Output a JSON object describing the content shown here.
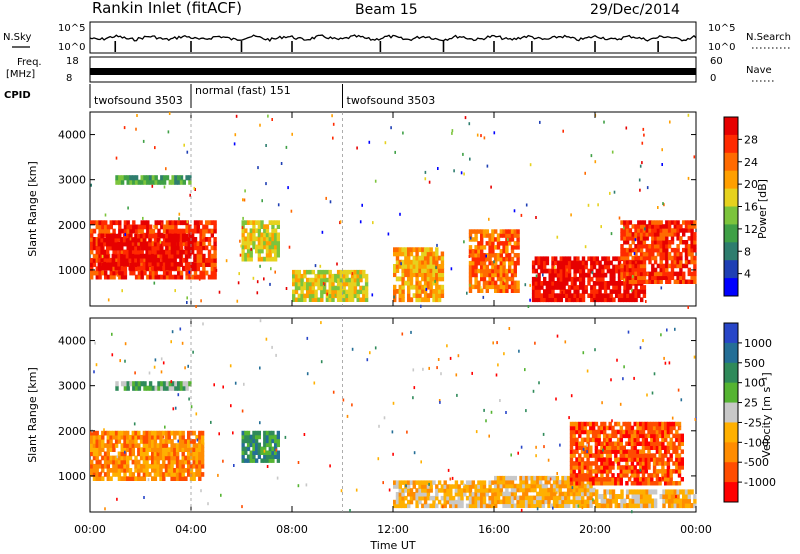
{
  "header": {
    "station": "Rankin Inlet (fitACF)",
    "beam": "Beam 15",
    "date": "29/Dec/2014"
  },
  "left_labels": {
    "nsky": "N.Sky",
    "freq_line1": "Freq.",
    "freq_line2": "[MHz]",
    "cpid": "CPID"
  },
  "right_labels": {
    "nsearch": "N.Search",
    "nave": "Nave"
  },
  "noise_axis": {
    "left_ticks": [
      "10^5",
      "10^0"
    ],
    "right_ticks": [
      "10^5",
      "10^0"
    ]
  },
  "freq_axis": {
    "left_ticks": [
      "18",
      "8"
    ],
    "right_ticks": [
      "60",
      "0"
    ]
  },
  "cpid_segments": [
    {
      "label": "twofsound 3503",
      "start_hr": 0.0,
      "end_hr": 4.0
    },
    {
      "label": "normal (fast) 151",
      "start_hr": 4.0,
      "end_hr": 10.0
    },
    {
      "label": "twofsound 3503",
      "start_hr": 10.0,
      "end_hr": 24.0
    }
  ],
  "colors": {
    "power": [
      "#0000ff",
      "#1f3fb4",
      "#2e7d6e",
      "#3fa046",
      "#7cc43c",
      "#e6d21e",
      "#ff9f00",
      "#ff6a00",
      "#ff2a00",
      "#e60000"
    ],
    "velocity": [
      "#ff0000",
      "#ff4c00",
      "#ff8c00",
      "#ffb000",
      "#c8c8c8",
      "#55b432",
      "#2f8a5a",
      "#246e96",
      "#2846c8"
    ]
  },
  "chart_data": [
    {
      "type": "heatmap",
      "title": "",
      "xlabel": "",
      "ylabel": "Slant Range [km]",
      "x_range_hours": [
        0,
        24
      ],
      "ylim": [
        200,
        4500
      ],
      "y_ticks": [
        "1000",
        "2000",
        "3000",
        "4000"
      ],
      "colorbar_label": "Power [dB]",
      "colorbar_ticks": [
        "28",
        "24",
        "20",
        "16",
        "12",
        "8",
        "4"
      ],
      "regions": [
        {
          "x0": 0.0,
          "x1": 5.0,
          "y0": 800,
          "y1": 2100,
          "level": 8
        },
        {
          "x0": 0.3,
          "x1": 4.2,
          "y0": 1000,
          "y1": 1800,
          "level": 9
        },
        {
          "x0": 1.0,
          "x1": 4.0,
          "y0": 2900,
          "y1": 3100,
          "level": 3
        },
        {
          "x0": 6.0,
          "x1": 7.5,
          "y0": 1200,
          "y1": 2100,
          "level": 5
        },
        {
          "x0": 12.0,
          "x1": 14.0,
          "y0": 300,
          "y1": 1500,
          "level": 6
        },
        {
          "x0": 15.0,
          "x1": 17.0,
          "y0": 500,
          "y1": 1900,
          "level": 7
        },
        {
          "x0": 17.5,
          "x1": 22.0,
          "y0": 300,
          "y1": 1300,
          "level": 9
        },
        {
          "x0": 21.0,
          "x1": 24.0,
          "y0": 700,
          "y1": 2100,
          "level": 8
        },
        {
          "x0": 8.0,
          "x1": 11.0,
          "y0": 300,
          "y1": 1000,
          "level": 5
        }
      ]
    },
    {
      "type": "heatmap",
      "title": "",
      "xlabel": "Time UT",
      "ylabel": "Slant Range [km]",
      "x_range_hours": [
        0,
        24
      ],
      "x_ticks": [
        "00:00",
        "04:00",
        "08:00",
        "12:00",
        "16:00",
        "20:00",
        "00:00"
      ],
      "ylim": [
        200,
        4500
      ],
      "y_ticks": [
        "1000",
        "2000",
        "3000",
        "4000"
      ],
      "colorbar_label": "Velocity [m s⁻¹]",
      "colorbar_ticks": [
        "1000",
        "500",
        "100",
        "25",
        "-25",
        "-100",
        "-500",
        "-1000"
      ],
      "regions": [
        {
          "x0": 0.0,
          "x1": 4.5,
          "y0": 900,
          "y1": 2000,
          "level": 2
        },
        {
          "x0": 1.0,
          "x1": 4.0,
          "y0": 2900,
          "y1": 3100,
          "level": 5
        },
        {
          "x0": 6.0,
          "x1": 7.5,
          "y0": 1300,
          "y1": 2000,
          "level": 6
        },
        {
          "x0": 12.0,
          "x1": 16.0,
          "y0": 300,
          "y1": 900,
          "level": 3
        },
        {
          "x0": 16.0,
          "x1": 20.0,
          "y0": 300,
          "y1": 1000,
          "level": 3
        },
        {
          "x0": 19.0,
          "x1": 23.5,
          "y0": 800,
          "y1": 2200,
          "level": 1
        },
        {
          "x0": 20.0,
          "x1": 24.0,
          "y0": 300,
          "y1": 700,
          "level": 3
        }
      ]
    }
  ]
}
